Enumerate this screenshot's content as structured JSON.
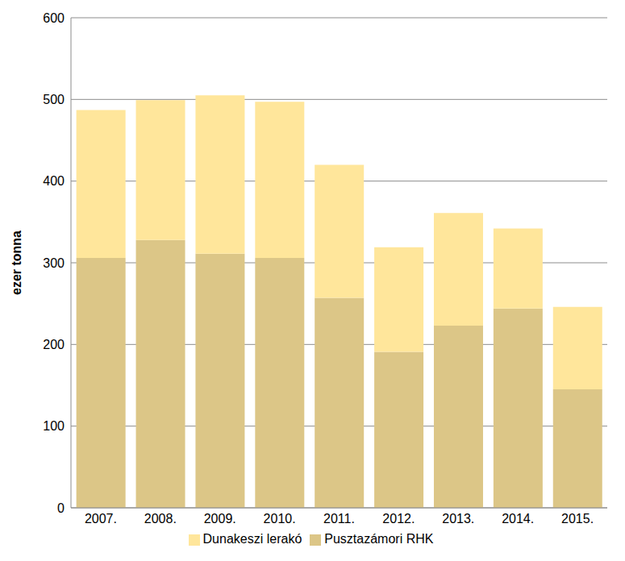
{
  "chart_data": {
    "type": "bar",
    "stacked": true,
    "y_label": "ezer tonna",
    "categories": [
      "2007.",
      "2008.",
      "2009.",
      "2010.",
      "2011.",
      "2012.",
      "2013.",
      "2014.",
      "2015."
    ],
    "series": [
      {
        "name": "Pusztazámori RHK",
        "color": "#dcc687",
        "values": [
          306,
          328,
          311,
          306,
          257,
          191,
          223,
          244,
          145
        ]
      },
      {
        "name": "Dunakeszi lerakó",
        "color": "#ffe69b",
        "values": [
          181,
          171,
          194,
          191,
          163,
          128,
          138,
          98,
          101
        ]
      }
    ],
    "ylim": [
      0,
      600
    ],
    "yticks": [
      0,
      100,
      200,
      300,
      400,
      500,
      600
    ],
    "grid": true,
    "legend": "bottom"
  }
}
